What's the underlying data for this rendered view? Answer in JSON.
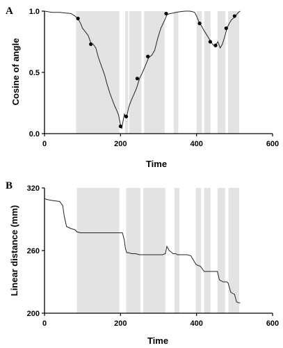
{
  "chart_data": [
    {
      "type": "line",
      "panel_label": "A",
      "xlabel": "Time",
      "ylabel": "Cosine of angle",
      "xlim": [
        0,
        600
      ],
      "ylim": [
        0,
        1
      ],
      "x_ticks": [
        0,
        200,
        400,
        600
      ],
      "y_ticks": [
        0.0,
        0.5,
        1.0
      ],
      "y_tick_labels": [
        "0.0",
        "0.5",
        "1.0"
      ],
      "grid": false,
      "shaded_intervals": [
        [
          83,
          197
        ],
        [
          212,
          220
        ],
        [
          223,
          255
        ],
        [
          262,
          316
        ],
        [
          340,
          352
        ],
        [
          400,
          414
        ],
        [
          420,
          437
        ],
        [
          455,
          476
        ],
        [
          483,
          512
        ]
      ],
      "series": [
        {
          "x": [
            0,
            20,
            40,
            55,
            70,
            80,
            88,
            95,
            100,
            108,
            115,
            122,
            128,
            135,
            142,
            150,
            158,
            165,
            172,
            178,
            184,
            190,
            195,
            200,
            203,
            206,
            210,
            213,
            217,
            222,
            228,
            235,
            242,
            250,
            258,
            266,
            274,
            282,
            290,
            298,
            306,
            312,
            318,
            322,
            330,
            340,
            355,
            370,
            382,
            390,
            395,
            400,
            404,
            408,
            413,
            418,
            424,
            430,
            436,
            440,
            445,
            450,
            456,
            462,
            468,
            474,
            480,
            486,
            492,
            500,
            505,
            510,
            515
          ],
          "y": [
            1.0,
            0.99,
            0.99,
            0.985,
            0.98,
            0.96,
            0.94,
            0.9,
            0.86,
            0.83,
            0.8,
            0.74,
            0.73,
            0.7,
            0.62,
            0.55,
            0.48,
            0.4,
            0.33,
            0.28,
            0.23,
            0.19,
            0.15,
            0.07,
            0.04,
            0.09,
            0.16,
            0.14,
            0.15,
            0.22,
            0.27,
            0.32,
            0.37,
            0.45,
            0.5,
            0.56,
            0.62,
            0.64,
            0.68,
            0.78,
            0.86,
            0.9,
            0.94,
            0.97,
            0.98,
            0.985,
            0.995,
            1.0,
            1.0,
            0.995,
            0.99,
            0.96,
            0.93,
            0.9,
            0.88,
            0.85,
            0.82,
            0.79,
            0.76,
            0.74,
            0.72,
            0.72,
            0.75,
            0.7,
            0.73,
            0.79,
            0.86,
            0.9,
            0.93,
            0.95,
            0.97,
            0.99,
            1.0
          ],
          "markers": {
            "x": [
              88,
              122,
              200,
              215,
              244,
              272,
              320,
              408,
              436,
              450,
              478,
              500
            ],
            "y": [
              0.94,
              0.73,
              0.06,
              0.14,
              0.45,
              0.63,
              0.98,
              0.9,
              0.75,
              0.72,
              0.86,
              0.96
            ]
          }
        }
      ]
    },
    {
      "type": "line",
      "panel_label": "B",
      "xlabel": "Time",
      "ylabel": "Linear distance (mm)",
      "xlim": [
        0,
        600
      ],
      "ylim": [
        200,
        320
      ],
      "x_ticks": [
        0,
        200,
        400,
        600
      ],
      "y_ticks": [
        200,
        260,
        320
      ],
      "y_tick_labels": [
        "200",
        "260",
        "320"
      ],
      "grid": false,
      "shaded_intervals": [
        [
          85,
          197
        ],
        [
          215,
          252
        ],
        [
          260,
          318
        ],
        [
          342,
          355
        ],
        [
          398,
          412
        ],
        [
          420,
          437
        ],
        [
          455,
          475
        ],
        [
          484,
          512
        ]
      ],
      "series": [
        {
          "x": [
            0,
            5,
            20,
            40,
            48,
            52,
            58,
            70,
            80,
            85,
            95,
            110,
            130,
            150,
            170,
            190,
            200,
            205,
            210,
            213,
            216,
            220,
            230,
            240,
            250,
            260,
            270,
            280,
            290,
            300,
            310,
            318,
            322,
            325,
            328,
            332,
            338,
            345,
            350,
            360,
            375,
            385,
            390,
            395,
            398,
            402,
            410,
            420,
            440,
            445,
            455,
            460,
            470,
            480,
            483,
            486,
            490,
            495,
            500,
            505,
            510,
            515
          ],
          "y": [
            310,
            309,
            308,
            307,
            303,
            293,
            283,
            281,
            280,
            278,
            277,
            277,
            277,
            277,
            277,
            277,
            277,
            277,
            270,
            262,
            258,
            258,
            257,
            257,
            256,
            256,
            256,
            256,
            256,
            256,
            256,
            257,
            264,
            262,
            260,
            259,
            257,
            257,
            256,
            256,
            256,
            255,
            252,
            249,
            247,
            246,
            245,
            240,
            240,
            240,
            240,
            232,
            230,
            230,
            229,
            225,
            220,
            219,
            218,
            211,
            210,
            210
          ]
        }
      ]
    }
  ]
}
